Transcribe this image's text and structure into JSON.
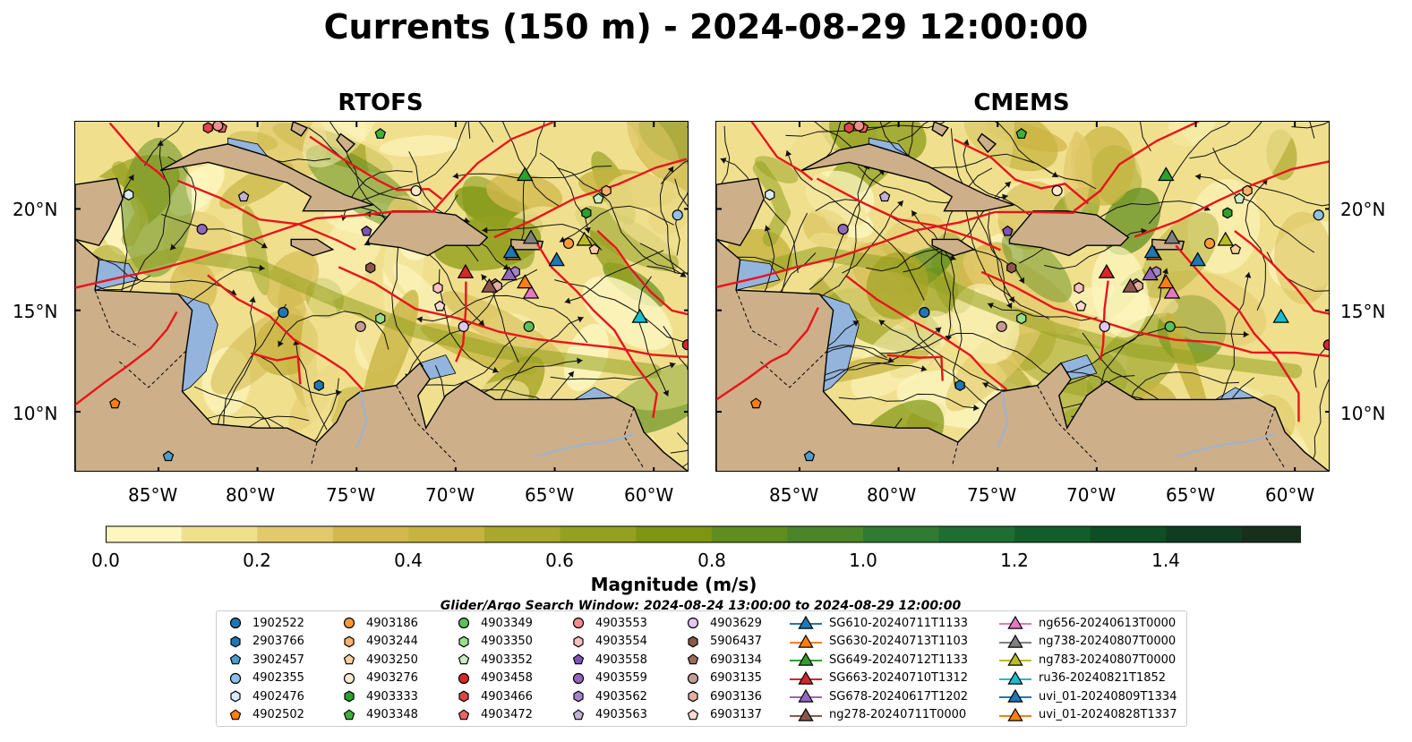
{
  "title": "Currents (150 m) - 2024-08-29 12:00:00",
  "panels": [
    {
      "name": "RTOFS"
    },
    {
      "name": "CMEMS"
    }
  ],
  "lat_ticks": [
    "20°N",
    "15°N",
    "10°N"
  ],
  "lon_ticks": [
    "85°W",
    "80°W",
    "75°W",
    "70°W",
    "65°W",
    "60°W"
  ],
  "colorbar": {
    "label": "Magnitude (m/s)",
    "ticks": [
      "0.0",
      "0.2",
      "0.4",
      "0.6",
      "0.8",
      "1.0",
      "1.2",
      "1.4"
    ],
    "range": [
      0.0,
      1.6
    ],
    "extend": "max",
    "colors": [
      "#fdf6c0",
      "#f0e08e",
      "#e2ca6c",
      "#d2b84e",
      "#c6b340",
      "#a9a72c",
      "#94a020",
      "#7e9612",
      "#5f8d1e",
      "#4a852a",
      "#2f7b31",
      "#1d6e30",
      "#125d2a",
      "#0f4d24",
      "#103d1f",
      "#17301a"
    ]
  },
  "search_window": "Glider/Argo Search Window: 2024-08-24 13:00:00 to 2024-08-29 12:00:00",
  "legend": [
    {
      "label": "1902522",
      "marker": "circle",
      "color": "#1f77b4"
    },
    {
      "label": "2903766",
      "marker": "hexagon",
      "color": "#1f77b4"
    },
    {
      "label": "3902457",
      "marker": "pentagon",
      "color": "#4a9fd0"
    },
    {
      "label": "4902355",
      "marker": "circle",
      "color": "#8ec0ea"
    },
    {
      "label": "4902476",
      "marker": "hexagon",
      "color": "#d8ebfa"
    },
    {
      "label": "4902502",
      "marker": "pentagon",
      "color": "#ff7f0e"
    },
    {
      "label": "4903186",
      "marker": "circle",
      "color": "#ff9a3c"
    },
    {
      "label": "4903244",
      "marker": "hexagon",
      "color": "#ffb26e"
    },
    {
      "label": "4903250",
      "marker": "pentagon",
      "color": "#ffcf9e"
    },
    {
      "label": "4903276",
      "marker": "circle",
      "color": "#ffe8cc"
    },
    {
      "label": "4903333",
      "marker": "hexagon",
      "color": "#2ca02c"
    },
    {
      "label": "4903348",
      "marker": "pentagon",
      "color": "#3cb23c"
    },
    {
      "label": "4903349",
      "marker": "circle",
      "color": "#5cc05c"
    },
    {
      "label": "4903350",
      "marker": "hexagon",
      "color": "#98df8a"
    },
    {
      "label": "4903352",
      "marker": "pentagon",
      "color": "#c7efc0"
    },
    {
      "label": "4903458",
      "marker": "circle",
      "color": "#d62728"
    },
    {
      "label": "4903466",
      "marker": "hexagon",
      "color": "#e04546"
    },
    {
      "label": "4903472",
      "marker": "pentagon",
      "color": "#ee6466"
    },
    {
      "label": "4903553",
      "marker": "circle",
      "color": "#f28e8e"
    },
    {
      "label": "4903554",
      "marker": "hexagon",
      "color": "#f8c0c0"
    },
    {
      "label": "4903558",
      "marker": "pentagon",
      "color": "#8052b8"
    },
    {
      "label": "4903559",
      "marker": "circle",
      "color": "#9467bd"
    },
    {
      "label": "4903562",
      "marker": "hexagon",
      "color": "#a883cc"
    },
    {
      "label": "4903563",
      "marker": "pentagon",
      "color": "#c5b0d5"
    },
    {
      "label": "4903629",
      "marker": "circle",
      "color": "#e0c8f0"
    },
    {
      "label": "5906437",
      "marker": "hexagon",
      "color": "#8c564b"
    },
    {
      "label": "6903134",
      "marker": "pentagon",
      "color": "#9e6a5e"
    },
    {
      "label": "6903135",
      "marker": "circle",
      "color": "#c49c94"
    },
    {
      "label": "6903136",
      "marker": "hexagon",
      "color": "#e3b0a2"
    },
    {
      "label": "6903137",
      "marker": "pentagon",
      "color": "#fbd9d0"
    },
    {
      "label": "SG610-20240711T1133",
      "marker": "triangle",
      "color": "#1f77b4"
    },
    {
      "label": "SG630-20240713T1103",
      "marker": "triangle",
      "color": "#ff7f0e"
    },
    {
      "label": "SG649-20240712T1133",
      "marker": "triangle",
      "color": "#2ca02c"
    },
    {
      "label": "SG663-20240710T1312",
      "marker": "triangle",
      "color": "#d62728"
    },
    {
      "label": "SG678-20240617T1202",
      "marker": "triangle",
      "color": "#9467bd"
    },
    {
      "label": "ng278-20240711T0000",
      "marker": "triangle",
      "color": "#8c564b"
    },
    {
      "label": "ng656-20240613T0000",
      "marker": "triangle",
      "color": "#e377c2"
    },
    {
      "label": "ng738-20240807T0000",
      "marker": "triangle",
      "color": "#7f7f7f"
    },
    {
      "label": "ng783-20240807T0000",
      "marker": "triangle",
      "color": "#bcbd22"
    },
    {
      "label": "ru36-20240821T1852",
      "marker": "triangle",
      "color": "#17becf"
    },
    {
      "label": "uvi_01-20240809T1334",
      "marker": "triangle",
      "color": "#1f77b4"
    },
    {
      "label": "uvi_01-20240828T1337",
      "marker": "triangle",
      "color": "#ff7f0e"
    }
  ],
  "markers": [
    {
      "id": "1902522",
      "lon": -78.7,
      "lat": 14.9
    },
    {
      "id": "2903766",
      "lon": -76.9,
      "lat": 11.3
    },
    {
      "id": "3902457",
      "lon": -84.5,
      "lat": 7.8
    },
    {
      "id": "4902355",
      "lon": -58.8,
      "lat": 19.7
    },
    {
      "id": "4902476",
      "lon": -86.5,
      "lat": 20.7
    },
    {
      "id": "4902502",
      "lon": -87.2,
      "lat": 10.4
    },
    {
      "id": "4903186",
      "lon": -64.3,
      "lat": 18.3
    },
    {
      "id": "4903244",
      "lon": -62.4,
      "lat": 20.9
    },
    {
      "id": "4903250",
      "lon": -63.0,
      "lat": 18.0
    },
    {
      "id": "4903276",
      "lon": -72.0,
      "lat": 20.9
    },
    {
      "id": "4903333",
      "lon": -63.4,
      "lat": 19.8
    },
    {
      "id": "4903348",
      "lon": -73.8,
      "lat": 23.7
    },
    {
      "id": "4903349",
      "lon": -66.3,
      "lat": 14.2
    },
    {
      "id": "4903350",
      "lon": -73.8,
      "lat": 14.6
    },
    {
      "id": "4903352",
      "lon": -62.8,
      "lat": 20.5
    },
    {
      "id": "4903458",
      "lon": -58.3,
      "lat": 13.3
    },
    {
      "id": "4903466",
      "lon": -82.5,
      "lat": 24.0
    },
    {
      "id": "4903472",
      "lon": -81.8,
      "lat": 24.0
    },
    {
      "id": "4903553",
      "lon": -82.0,
      "lat": 24.1
    },
    {
      "id": "4903554",
      "lon": -70.9,
      "lat": 16.1
    },
    {
      "id": "4903558",
      "lon": -74.5,
      "lat": 18.9
    },
    {
      "id": "4903559",
      "lon": -82.8,
      "lat": 19.0
    },
    {
      "id": "4903562",
      "lon": -67.0,
      "lat": 16.9
    },
    {
      "id": "4903563",
      "lon": -80.7,
      "lat": 20.6
    },
    {
      "id": "4903629",
      "lon": -69.6,
      "lat": 14.2
    },
    {
      "id": "5906437",
      "lon": -74.3,
      "lat": 17.1
    },
    {
      "id": "6903134",
      "lon": -68.0,
      "lat": 16.3
    },
    {
      "id": "6903135",
      "lon": -74.8,
      "lat": 14.2
    },
    {
      "id": "6903136",
      "lon": -67.9,
      "lat": 16.2
    },
    {
      "id": "6903137",
      "lon": -70.8,
      "lat": 15.2
    },
    {
      "id": "SG610-20240711T1133",
      "lon": -64.9,
      "lat": 17.5
    },
    {
      "id": "SG630-20240713T1103",
      "lon": -67.1,
      "lat": 17.8
    },
    {
      "id": "SG649-20240712T1133",
      "lon": -66.5,
      "lat": 21.7
    },
    {
      "id": "SG663-20240710T1312",
      "lon": -69.5,
      "lat": 16.9
    },
    {
      "id": "SG678-20240617T1202",
      "lon": -67.3,
      "lat": 16.8
    },
    {
      "id": "ng278-20240711T0000",
      "lon": -68.3,
      "lat": 16.2
    },
    {
      "id": "ng656-20240613T0000",
      "lon": -66.2,
      "lat": 15.9
    },
    {
      "id": "ng738-20240807T0000",
      "lon": -66.2,
      "lat": 18.6
    },
    {
      "id": "ng783-20240807T0000",
      "lon": -63.5,
      "lat": 18.5
    },
    {
      "id": "ru36-20240821T1852",
      "lon": -60.7,
      "lat": 14.7
    },
    {
      "id": "uvi_01-20240809T1334",
      "lon": -67.2,
      "lat": 17.9
    },
    {
      "id": "uvi_01-20240828T1337",
      "lon": -66.5,
      "lat": 16.4
    }
  ]
}
